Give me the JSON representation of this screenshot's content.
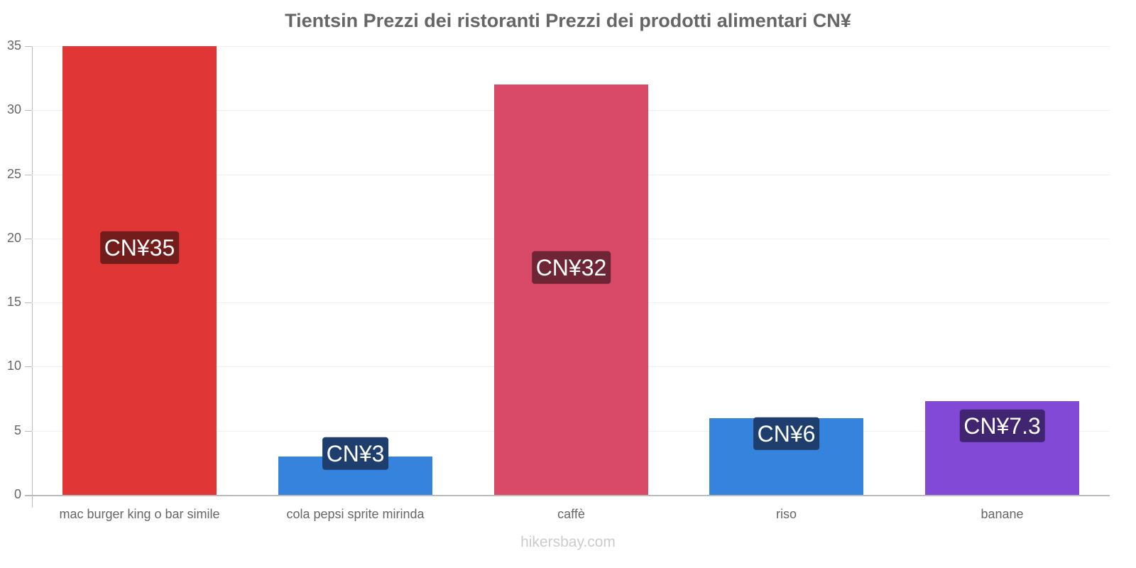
{
  "title": "Tientsin Prezzi dei ristoranti Prezzi dei prodotti alimentari CN¥",
  "watermark": "hikersbay.com",
  "y_ticks": [
    "0",
    "5",
    "10",
    "15",
    "20",
    "25",
    "30",
    "35"
  ],
  "bars": [
    {
      "category": "mac burger king o bar simile",
      "value": 35,
      "label": "CN¥35",
      "color": "#e03636",
      "label_bg": "#721c1c"
    },
    {
      "category": "cola pepsi sprite mirinda",
      "value": 3,
      "label": "CN¥3",
      "color": "#3583dd",
      "label_bg": "#1e3e6e"
    },
    {
      "category": "caffè",
      "value": 32,
      "label": "CN¥32",
      "color": "#d84a68",
      "label_bg": "#6e2536"
    },
    {
      "category": "riso",
      "value": 6,
      "label": "CN¥6",
      "color": "#3583dd",
      "label_bg": "#1e3e6e"
    },
    {
      "category": "banane",
      "value": 7.3,
      "label": "CN¥7.3",
      "color": "#8149d6",
      "label_bg": "#412570"
    }
  ],
  "chart_data": {
    "type": "bar",
    "title": "Tientsin Prezzi dei ristoranti Prezzi dei prodotti alimentari CN¥",
    "categories": [
      "mac burger king o bar simile",
      "cola pepsi sprite mirinda",
      "caffè",
      "riso",
      "banane"
    ],
    "values": [
      35,
      3,
      32,
      6,
      7.3
    ],
    "data_labels": [
      "CN¥35",
      "CN¥3",
      "CN¥32",
      "CN¥6",
      "CN¥7.3"
    ],
    "colors": [
      "#e03636",
      "#3583dd",
      "#d84a68",
      "#3583dd",
      "#8149d6"
    ],
    "xlabel": "",
    "ylabel": "",
    "ylim": [
      0,
      35
    ],
    "yticks": [
      0,
      5,
      10,
      15,
      20,
      25,
      30,
      35
    ],
    "grid": true,
    "legend": "none"
  }
}
